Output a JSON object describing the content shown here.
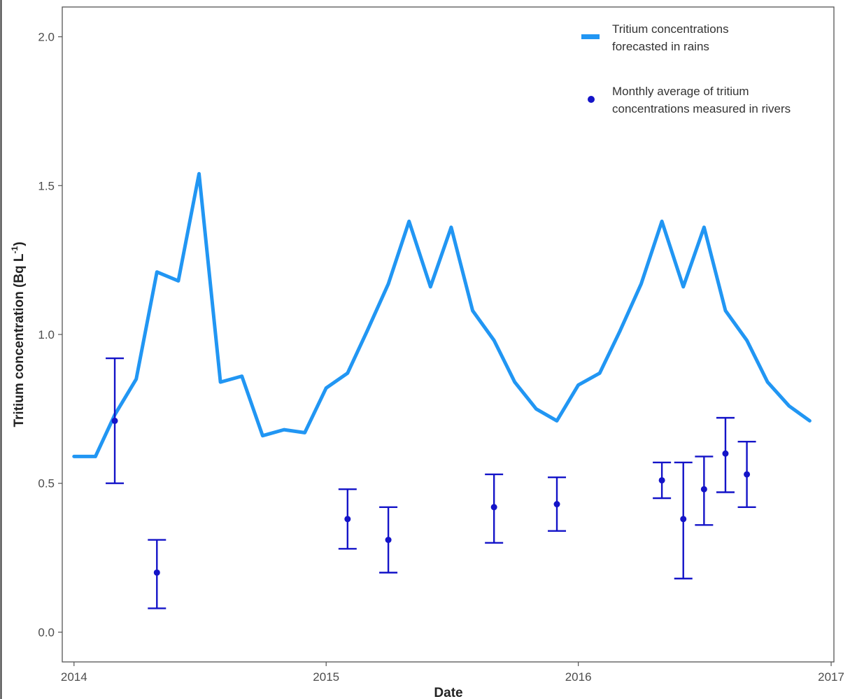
{
  "chart_data": {
    "type": "line",
    "title": "",
    "xlabel": "Date",
    "ylabel": "Tritium concentration (Bq L",
    "ylabel_superscript": "-1",
    "ylabel_suffix": ")",
    "xlim": [
      "2013-12-15",
      "2017-01-05"
    ],
    "ylim": [
      -0.1,
      2.1
    ],
    "x_ticks": [
      "2014",
      "2015",
      "2016",
      "2017"
    ],
    "y_ticks": [
      "0.0",
      "0.5",
      "1.0",
      "1.5",
      "2.0"
    ],
    "grid": false,
    "legend_position": "top-right",
    "series": [
      {
        "name": "Tritium concentrations forecasted in rains",
        "kind": "line",
        "color": "#2196f3",
        "x": [
          "2014-01-01",
          "2014-02-01",
          "2014-03-01",
          "2014-04-01",
          "2014-05-01",
          "2014-06-01",
          "2014-07-01",
          "2014-08-01",
          "2014-09-01",
          "2014-10-01",
          "2014-11-01",
          "2014-12-01",
          "2015-01-01",
          "2015-02-01",
          "2015-03-01",
          "2015-04-01",
          "2015-05-01",
          "2015-06-01",
          "2015-07-01",
          "2015-08-01",
          "2015-09-01",
          "2015-10-01",
          "2015-11-01",
          "2015-12-01",
          "2016-01-01",
          "2016-02-01",
          "2016-03-01",
          "2016-04-01",
          "2016-05-01",
          "2016-06-01",
          "2016-07-01",
          "2016-08-01",
          "2016-09-01",
          "2016-10-01",
          "2016-11-01",
          "2016-12-01"
        ],
        "y": [
          0.59,
          0.59,
          0.73,
          0.85,
          1.21,
          1.18,
          1.54,
          0.84,
          0.86,
          0.66,
          0.68,
          0.67,
          0.82,
          0.87,
          1.01,
          1.17,
          1.38,
          1.16,
          1.36,
          1.08,
          0.98,
          0.84,
          0.75,
          0.71,
          0.83,
          0.87,
          1.01,
          1.17,
          1.38,
          1.16,
          1.36,
          1.08,
          0.98,
          0.84,
          0.76,
          0.71
        ]
      },
      {
        "name": "Monthly average of tritium concentrations measured in rivers",
        "kind": "errorbar",
        "color": "#1414c8",
        "x": [
          "2014-03-01",
          "2014-05-01",
          "2015-02-01",
          "2015-04-01",
          "2015-09-01",
          "2015-12-01",
          "2016-05-01",
          "2016-06-01",
          "2016-07-01",
          "2016-08-01",
          "2016-09-01"
        ],
        "y": [
          0.71,
          0.2,
          0.38,
          0.31,
          0.42,
          0.43,
          0.51,
          0.38,
          0.48,
          0.6,
          0.53
        ],
        "ymin": [
          0.5,
          0.08,
          0.28,
          0.2,
          0.3,
          0.34,
          0.45,
          0.18,
          0.36,
          0.47,
          0.42
        ],
        "ymax": [
          0.92,
          0.31,
          0.48,
          0.42,
          0.53,
          0.52,
          0.57,
          0.57,
          0.59,
          0.72,
          0.64
        ]
      }
    ],
    "legend": [
      {
        "lines": [
          "Tritium concentrations",
          "forecasted in rains"
        ]
      },
      {
        "lines": [
          "Monthly  average of tritium",
          "concentrations measured in rivers"
        ]
      }
    ]
  }
}
